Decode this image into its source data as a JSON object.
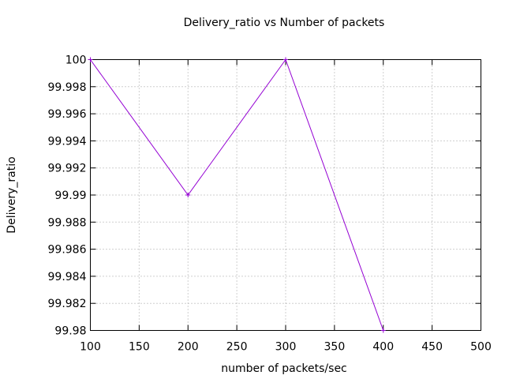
{
  "chart_data": {
    "type": "line",
    "title": "Delivery_ratio vs Number of packets",
    "xlabel": "number of packets/sec",
    "ylabel": "Delivery_ratio",
    "xlim": [
      100,
      500
    ],
    "ylim": [
      99.98,
      100
    ],
    "x_ticks": [
      "100",
      "150",
      "200",
      "250",
      "300",
      "350",
      "400",
      "450",
      "500"
    ],
    "y_ticks": [
      "99.98",
      "99.982",
      "99.984",
      "99.986",
      "99.988",
      "99.99",
      "99.992",
      "99.994",
      "99.996",
      "99.998",
      "100"
    ],
    "grid": true,
    "series": [
      {
        "x": [
          100,
          200,
          300,
          400
        ],
        "values": [
          100,
          99.99,
          100,
          99.98
        ],
        "color": "#9400d3",
        "marker": "plus"
      }
    ]
  }
}
